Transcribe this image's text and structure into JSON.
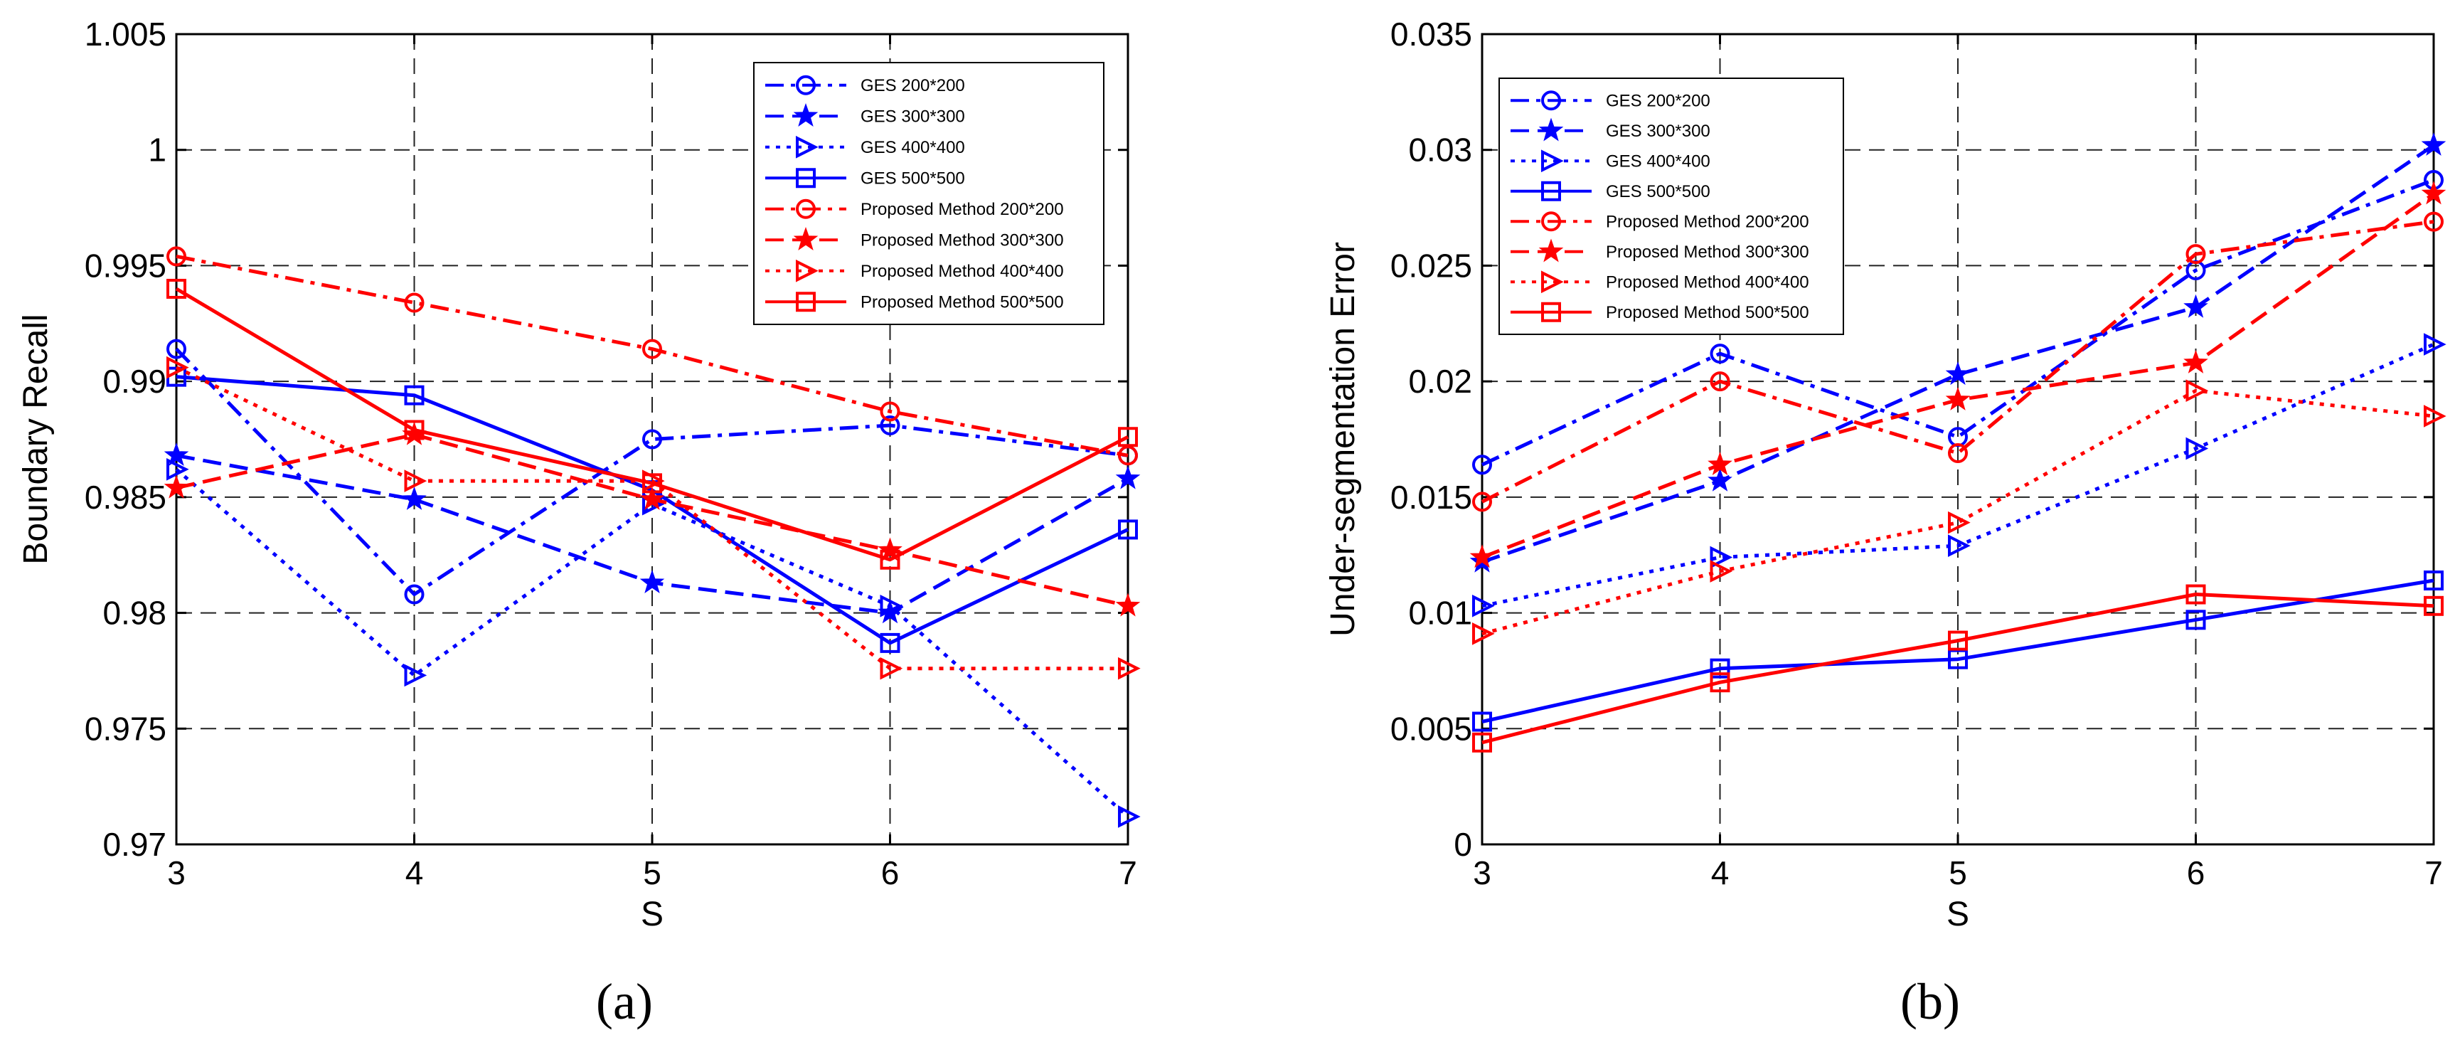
{
  "chart_data": [
    {
      "type": "line",
      "panel_label": "(a)",
      "xlabel": "S",
      "ylabel": "Boundary Recall",
      "xlim": [
        3,
        7
      ],
      "ylim": [
        0.97,
        1.005
      ],
      "x": [
        3,
        4,
        5,
        6,
        7
      ],
      "x_ticks": [
        "3",
        "4",
        "5",
        "6",
        "7"
      ],
      "y_ticks": [
        "0.97",
        "0.975",
        "0.98",
        "0.985",
        "0.99",
        "0.995",
        "1",
        "1.005"
      ],
      "grid": true,
      "legend_position": "top-right",
      "series": [
        {
          "name": "GES 200*200",
          "color": "#0000ff",
          "dash": "dash-dot",
          "marker": "circle",
          "values": [
            0.9914,
            0.9808,
            0.9875,
            0.9881,
            0.9868
          ]
        },
        {
          "name": "GES 300*300",
          "color": "#0000ff",
          "dash": "dashed",
          "marker": "star",
          "values": [
            0.9868,
            0.9849,
            0.9813,
            0.98,
            0.9858
          ]
        },
        {
          "name": "GES 400*400",
          "color": "#0000ff",
          "dash": "dotted",
          "marker": "triangle-right",
          "values": [
            0.9862,
            0.9773,
            0.9847,
            0.9803,
            0.9712
          ]
        },
        {
          "name": "GES 500*500",
          "color": "#0000ff",
          "dash": "solid",
          "marker": "square",
          "values": [
            0.9902,
            0.9894,
            0.9853,
            0.9787,
            0.9836
          ]
        },
        {
          "name": "Proposed Method 200*200",
          "color": "#ff0000",
          "dash": "dash-dot",
          "marker": "circle",
          "values": [
            0.9954,
            0.9934,
            0.9914,
            0.9887,
            0.9868
          ]
        },
        {
          "name": "Proposed Method 300*300",
          "color": "#ff0000",
          "dash": "dashed",
          "marker": "star",
          "values": [
            0.9854,
            0.9877,
            0.9849,
            0.9827,
            0.9803
          ]
        },
        {
          "name": "Proposed Method 400*400",
          "color": "#ff0000",
          "dash": "dotted",
          "marker": "triangle-right",
          "values": [
            0.9906,
            0.9857,
            0.9857,
            0.9776,
            0.9776
          ]
        },
        {
          "name": "Proposed Method 500*500",
          "color": "#ff0000",
          "dash": "solid",
          "marker": "square",
          "values": [
            0.994,
            0.9879,
            0.9856,
            0.9823,
            0.9876
          ]
        }
      ]
    },
    {
      "type": "line",
      "panel_label": "(b)",
      "xlabel": "S",
      "ylabel": "Under-segmentation Error",
      "xlim": [
        3,
        7
      ],
      "ylim": [
        0,
        0.035
      ],
      "x": [
        3,
        4,
        5,
        6,
        7
      ],
      "x_ticks": [
        "3",
        "4",
        "5",
        "6",
        "7"
      ],
      "y_ticks": [
        "0",
        "0.005",
        "0.01",
        "0.015",
        "0.02",
        "0.025",
        "0.03",
        "0.035"
      ],
      "grid": true,
      "legend_position": "top-left",
      "series": [
        {
          "name": "GES 200*200",
          "color": "#0000ff",
          "dash": "dash-dot",
          "marker": "circle",
          "values": [
            0.0164,
            0.0212,
            0.0176,
            0.0248,
            0.0287
          ]
        },
        {
          "name": "GES 300*300",
          "color": "#0000ff",
          "dash": "dashed",
          "marker": "star",
          "values": [
            0.0122,
            0.0157,
            0.0203,
            0.0232,
            0.0302
          ]
        },
        {
          "name": "GES 400*400",
          "color": "#0000ff",
          "dash": "dotted",
          "marker": "triangle-right",
          "values": [
            0.0103,
            0.0124,
            0.0129,
            0.0171,
            0.0216
          ]
        },
        {
          "name": "GES 500*500",
          "color": "#0000ff",
          "dash": "solid",
          "marker": "square",
          "values": [
            0.0053,
            0.0076,
            0.008,
            0.0097,
            0.0114
          ]
        },
        {
          "name": "Proposed Method 200*200",
          "color": "#ff0000",
          "dash": "dash-dot",
          "marker": "circle",
          "values": [
            0.0148,
            0.02,
            0.0169,
            0.0255,
            0.0269
          ]
        },
        {
          "name": "Proposed Method 300*300",
          "color": "#ff0000",
          "dash": "dashed",
          "marker": "star",
          "values": [
            0.0124,
            0.0164,
            0.0192,
            0.0208,
            0.0281
          ]
        },
        {
          "name": "Proposed Method 400*400",
          "color": "#ff0000",
          "dash": "dotted",
          "marker": "triangle-right",
          "values": [
            0.0091,
            0.0118,
            0.0139,
            0.0196,
            0.0185
          ]
        },
        {
          "name": "Proposed Method 500*500",
          "color": "#ff0000",
          "dash": "solid",
          "marker": "square",
          "values": [
            0.0044,
            0.007,
            0.0088,
            0.0108,
            0.0103
          ]
        }
      ]
    }
  ]
}
